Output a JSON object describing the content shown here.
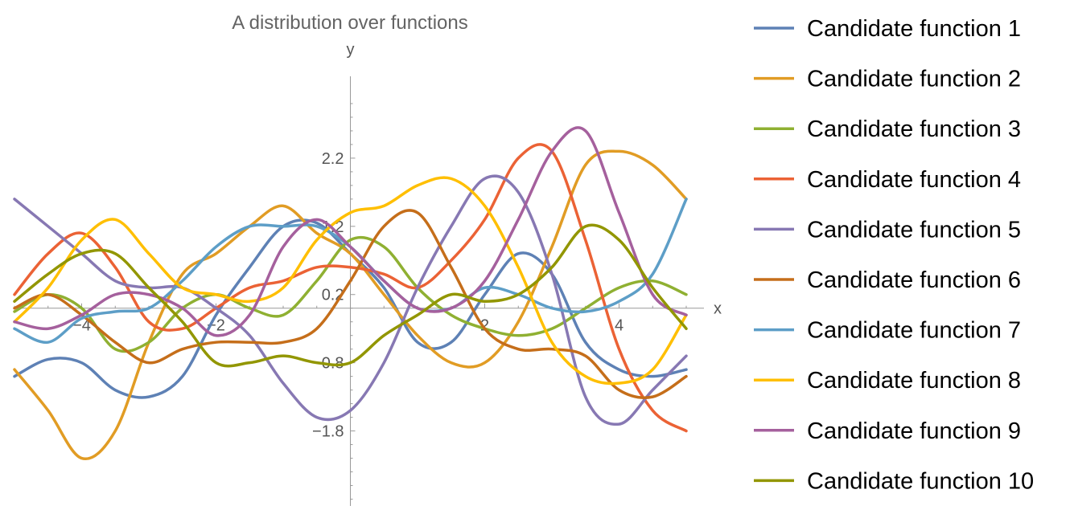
{
  "chart_data": {
    "type": "line",
    "title": "A distribution over functions",
    "xlabel": "x",
    "ylabel": "y",
    "xlim": [
      -5,
      5
    ],
    "ylim": [
      -2.9,
      3.4
    ],
    "x_ticks": [
      -4,
      -2,
      2,
      4
    ],
    "x_tick_labels": [
      "−4",
      "−2",
      "2",
      "4"
    ],
    "y_ticks": [
      2.2,
      1.2,
      0.2,
      -0.8,
      -1.8
    ],
    "y_tick_labels": [
      "2.2",
      "1.2",
      "0.2",
      "−0.8",
      "−1.8"
    ],
    "grid": false,
    "legend_position": "right",
    "x": [
      -5,
      -4.5,
      -4,
      -3.5,
      -3,
      -2.5,
      -2,
      -1.5,
      -1,
      -0.5,
      0,
      0.5,
      1,
      1.5,
      2,
      2.5,
      3,
      3.5,
      4,
      4.5,
      5
    ],
    "series": [
      {
        "name": "Candidate function 1",
        "color": "#5E81B5",
        "values": [
          -1.0,
          -0.75,
          -0.8,
          -1.2,
          -1.3,
          -1.0,
          -0.1,
          0.6,
          1.2,
          1.25,
          0.8,
          0.3,
          -0.5,
          -0.5,
          0.2,
          0.8,
          0.5,
          -0.5,
          -0.9,
          -1.0,
          -0.9
        ]
      },
      {
        "name": "Candidate function 2",
        "color": "#E19C24",
        "values": [
          -0.9,
          -1.5,
          -2.2,
          -1.8,
          -0.5,
          0.5,
          0.8,
          1.2,
          1.5,
          1.1,
          0.8,
          0.2,
          -0.4,
          -0.8,
          -0.8,
          -0.2,
          0.9,
          2.1,
          2.3,
          2.1,
          1.6
        ]
      },
      {
        "name": "Candidate function 3",
        "color": "#8FB032",
        "values": [
          -0.05,
          0.2,
          0.0,
          -0.6,
          -0.5,
          0.0,
          0.2,
          0.0,
          -0.1,
          0.4,
          1.0,
          0.9,
          0.3,
          -0.1,
          -0.3,
          -0.4,
          -0.3,
          0.0,
          0.3,
          0.4,
          0.2
        ]
      },
      {
        "name": "Candidate function 4",
        "color": "#EB6235",
        "values": [
          0.2,
          0.8,
          1.1,
          0.6,
          -0.2,
          -0.3,
          0.0,
          0.3,
          0.4,
          0.6,
          0.6,
          0.5,
          0.3,
          0.7,
          1.3,
          2.2,
          2.3,
          1.0,
          -0.6,
          -1.5,
          -1.8
        ]
      },
      {
        "name": "Candidate function 5",
        "color": "#8778B3",
        "values": [
          1.6,
          1.2,
          0.8,
          0.4,
          0.3,
          0.3,
          0.0,
          -0.4,
          -1.1,
          -1.6,
          -1.5,
          -0.8,
          0.3,
          1.2,
          1.9,
          1.7,
          0.5,
          -1.3,
          -1.7,
          -1.2,
          -0.7
        ]
      },
      {
        "name": "Candidate function 6",
        "color": "#C56E1A",
        "values": [
          0.0,
          0.2,
          -0.1,
          -0.5,
          -0.8,
          -0.6,
          -0.5,
          -0.5,
          -0.5,
          -0.3,
          0.4,
          1.2,
          1.4,
          0.6,
          -0.3,
          -0.6,
          -0.6,
          -0.7,
          -1.2,
          -1.3,
          -1.0
        ]
      },
      {
        "name": "Candidate function 7",
        "color": "#5D9EC7",
        "values": [
          -0.3,
          -0.5,
          -0.15,
          -0.05,
          0.0,
          0.4,
          0.9,
          1.2,
          1.2,
          1.2,
          0.9,
          0.4,
          0.0,
          0.0,
          0.3,
          0.2,
          0.0,
          -0.05,
          0.1,
          0.5,
          1.6
        ]
      },
      {
        "name": "Candidate function 8",
        "color": "#FFBF00",
        "values": [
          -0.2,
          0.3,
          1.0,
          1.3,
          0.8,
          0.3,
          0.2,
          0.1,
          0.3,
          1.0,
          1.4,
          1.5,
          1.8,
          1.9,
          1.5,
          0.6,
          -0.5,
          -1.0,
          -1.1,
          -0.9,
          -0.1
        ]
      },
      {
        "name": "Candidate function 9",
        "color": "#A5609D",
        "values": [
          -0.2,
          -0.3,
          -0.1,
          0.2,
          0.2,
          0.0,
          -0.4,
          -0.1,
          0.9,
          1.3,
          0.9,
          0.4,
          0.0,
          0.0,
          0.4,
          1.3,
          2.3,
          2.6,
          1.4,
          0.2,
          -0.1
        ]
      },
      {
        "name": "Candidate function 10",
        "color": "#929600",
        "values": [
          0.1,
          0.5,
          0.8,
          0.8,
          0.3,
          -0.2,
          -0.8,
          -0.8,
          -0.7,
          -0.8,
          -0.8,
          -0.4,
          -0.1,
          0.2,
          0.1,
          0.2,
          0.6,
          1.2,
          1.0,
          0.3,
          -0.3
        ]
      }
    ]
  }
}
